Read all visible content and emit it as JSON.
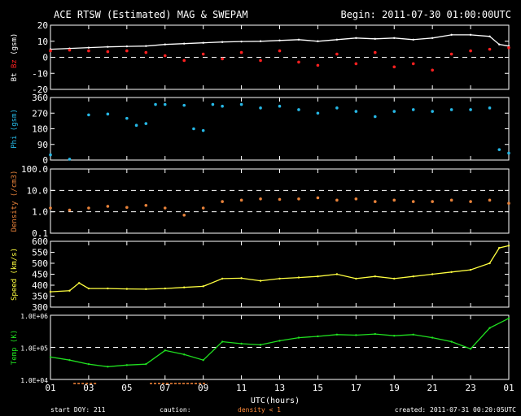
{
  "header": {
    "title": "ACE RTSW (Estimated) MAG & SWEPAM",
    "begin": "Begin: 2011-07-30 01:00:00UTC"
  },
  "footer": {
    "start_doy": "start DOY: 211",
    "caution": "caution:",
    "density_note": "density < 1",
    "created": "created: 2011-07-31 00:20:05UTC"
  },
  "chart_data": {
    "type": "line",
    "x_label": "UTC(hours)",
    "x_ticks": [
      "01",
      "03",
      "05",
      "07",
      "09",
      "11",
      "13",
      "15",
      "17",
      "19",
      "21",
      "23",
      "01"
    ],
    "x_range_hours": [
      0,
      24
    ],
    "colors": {
      "bt": "#ffffff",
      "bz": "#ff2020",
      "phi": "#26b8e6",
      "density": "#e8823a",
      "speed": "#ffff40",
      "temp": "#20e020",
      "axis": "#ffffff",
      "caution": "#ff8a3a"
    },
    "panels": [
      {
        "id": "mag",
        "ylabel_parts": [
          "Bt",
          " ",
          "Bz",
          " (gsm)"
        ],
        "ylabel_colors": [
          "#ffffff",
          "#ffffff",
          "#ff2020",
          "#ffffff"
        ],
        "ylim": [
          -20,
          20
        ],
        "yticks": [
          "20",
          "10",
          "0",
          "-10",
          "-20"
        ],
        "ytick_values": [
          20,
          10,
          0,
          -10,
          -20
        ],
        "dashed": [
          0
        ],
        "series": [
          {
            "name": "Bt",
            "color": "#ffffff",
            "style": "line",
            "values": [
              [
                0.0,
                5.0
              ],
              [
                1.0,
                5.5
              ],
              [
                2.0,
                6.0
              ],
              [
                3.0,
                6.5
              ],
              [
                4.0,
                6.8
              ],
              [
                5.0,
                7.0
              ],
              [
                6.0,
                8.0
              ],
              [
                7.0,
                8.5
              ],
              [
                8.0,
                9.0
              ],
              [
                9.0,
                9.5
              ],
              [
                10.0,
                9.8
              ],
              [
                11.0,
                10.0
              ],
              [
                12.0,
                10.5
              ],
              [
                13.0,
                11.0
              ],
              [
                14.0,
                10.0
              ],
              [
                15.0,
                11.0
              ],
              [
                16.0,
                12.0
              ],
              [
                17.0,
                11.5
              ],
              [
                18.0,
                12.0
              ],
              [
                19.0,
                11.0
              ],
              [
                20.0,
                12.0
              ],
              [
                21.0,
                14.0
              ],
              [
                22.0,
                14.0
              ],
              [
                23.0,
                13.0
              ],
              [
                23.5,
                8.0
              ],
              [
                24.0,
                7.0
              ]
            ]
          },
          {
            "name": "Bz",
            "color": "#ff2020",
            "style": "points",
            "values": [
              [
                0.0,
                4.0
              ],
              [
                1.0,
                4.5
              ],
              [
                2.0,
                4.0
              ],
              [
                3.0,
                3.5
              ],
              [
                4.0,
                4.0
              ],
              [
                5.0,
                3.0
              ],
              [
                6.0,
                1.0
              ],
              [
                7.0,
                -2.0
              ],
              [
                8.0,
                2.0
              ],
              [
                9.0,
                -1.0
              ],
              [
                10.0,
                3.0
              ],
              [
                11.0,
                -2.0
              ],
              [
                12.0,
                4.0
              ],
              [
                13.0,
                -3.0
              ],
              [
                14.0,
                -5.0
              ],
              [
                15.0,
                2.0
              ],
              [
                16.0,
                -4.0
              ],
              [
                17.0,
                3.0
              ],
              [
                18.0,
                -6.0
              ],
              [
                19.0,
                -4.0
              ],
              [
                20.0,
                -8.0
              ],
              [
                21.0,
                2.0
              ],
              [
                22.0,
                4.0
              ],
              [
                23.0,
                5.0
              ],
              [
                24.0,
                6.0
              ]
            ]
          }
        ]
      },
      {
        "id": "phi",
        "ylabel_parts": [
          "Phi (gsm)"
        ],
        "ylabel_colors": [
          "#26b8e6"
        ],
        "ylim": [
          0,
          360
        ],
        "yticks": [
          "360",
          "270",
          "180",
          "90",
          "0"
        ],
        "ytick_values": [
          360,
          270,
          180,
          90,
          0
        ],
        "dashed": [],
        "series": [
          {
            "name": "Phi",
            "color": "#26b8e6",
            "style": "points",
            "values": [
              [
                0.0,
                30.0
              ],
              [
                1.0,
                5.0
              ],
              [
                2.0,
                260.0
              ],
              [
                3.0,
                265.0
              ],
              [
                4.0,
                240.0
              ],
              [
                4.5,
                200.0
              ],
              [
                5.0,
                210.0
              ],
              [
                5.5,
                320.0
              ],
              [
                6.0,
                320.0
              ],
              [
                7.0,
                315.0
              ],
              [
                7.5,
                180.0
              ],
              [
                8.0,
                170.0
              ],
              [
                8.5,
                320.0
              ],
              [
                9.0,
                310.0
              ],
              [
                10.0,
                320.0
              ],
              [
                11.0,
                300.0
              ],
              [
                12.0,
                310.0
              ],
              [
                13.0,
                290.0
              ],
              [
                14.0,
                270.0
              ],
              [
                15.0,
                300.0
              ],
              [
                16.0,
                280.0
              ],
              [
                17.0,
                250.0
              ],
              [
                18.0,
                280.0
              ],
              [
                19.0,
                290.0
              ],
              [
                20.0,
                280.0
              ],
              [
                21.0,
                290.0
              ],
              [
                22.0,
                290.0
              ],
              [
                23.0,
                300.0
              ],
              [
                23.5,
                60.0
              ],
              [
                24.0,
                40.0
              ]
            ]
          }
        ]
      },
      {
        "id": "density",
        "ylabel_parts": [
          "Density (/cm3)"
        ],
        "ylabel_colors": [
          "#e8823a"
        ],
        "ylim": [
          0.1,
          100
        ],
        "log": true,
        "yticks": [
          "100.0",
          "10.0",
          "1.0",
          "0.1"
        ],
        "ytick_values": [
          100,
          10,
          1,
          0.1
        ],
        "dashed": [
          10,
          1
        ],
        "series": [
          {
            "name": "Density",
            "color": "#e8823a",
            "style": "points",
            "values": [
              [
                0.0,
                1.5
              ],
              [
                1.0,
                1.2
              ],
              [
                2.0,
                1.5
              ],
              [
                3.0,
                1.8
              ],
              [
                4.0,
                1.6
              ],
              [
                5.0,
                2.0
              ],
              [
                6.0,
                1.5
              ],
              [
                7.0,
                0.7
              ],
              [
                8.0,
                1.5
              ],
              [
                9.0,
                3.0
              ],
              [
                10.0,
                3.5
              ],
              [
                11.0,
                4.0
              ],
              [
                12.0,
                3.8
              ],
              [
                13.0,
                4.0
              ],
              [
                14.0,
                4.5
              ],
              [
                15.0,
                3.5
              ],
              [
                16.0,
                4.0
              ],
              [
                17.0,
                3.0
              ],
              [
                18.0,
                3.5
              ],
              [
                19.0,
                3.0
              ],
              [
                20.0,
                3.0
              ],
              [
                21.0,
                3.5
              ],
              [
                22.0,
                3.0
              ],
              [
                23.0,
                3.5
              ],
              [
                24.0,
                2.5
              ]
            ]
          }
        ]
      },
      {
        "id": "speed",
        "ylabel_parts": [
          "Speed (km/s)"
        ],
        "ylabel_colors": [
          "#ffff40"
        ],
        "ylim": [
          300,
          600
        ],
        "yticks": [
          "600",
          "550",
          "500",
          "450",
          "400",
          "350",
          "300"
        ],
        "ytick_values": [
          600,
          550,
          500,
          450,
          400,
          350,
          300
        ],
        "dashed": [],
        "series": [
          {
            "name": "Speed",
            "color": "#ffff40",
            "style": "line",
            "values": [
              [
                0.0,
                370.0
              ],
              [
                1.0,
                375.0
              ],
              [
                1.5,
                410.0
              ],
              [
                2.0,
                385.0
              ],
              [
                3.0,
                385.0
              ],
              [
                4.0,
                383.0
              ],
              [
                5.0,
                382.0
              ],
              [
                6.0,
                385.0
              ],
              [
                7.0,
                390.0
              ],
              [
                8.0,
                395.0
              ],
              [
                9.0,
                430.0
              ],
              [
                10.0,
                432.0
              ],
              [
                11.0,
                420.0
              ],
              [
                12.0,
                430.0
              ],
              [
                13.0,
                435.0
              ],
              [
                14.0,
                440.0
              ],
              [
                15.0,
                450.0
              ],
              [
                16.0,
                430.0
              ],
              [
                17.0,
                440.0
              ],
              [
                18.0,
                430.0
              ],
              [
                19.0,
                440.0
              ],
              [
                20.0,
                450.0
              ],
              [
                21.0,
                460.0
              ],
              [
                22.0,
                470.0
              ],
              [
                23.0,
                500.0
              ],
              [
                23.5,
                570.0
              ],
              [
                24.0,
                580.0
              ]
            ]
          }
        ]
      },
      {
        "id": "temp",
        "ylabel_parts": [
          "Temp (K)"
        ],
        "ylabel_colors": [
          "#20e020"
        ],
        "ylim": [
          10000,
          1000000
        ],
        "log": true,
        "yticks": [
          "1.0E+06",
          "1.0E+05",
          "1.0E+04"
        ],
        "ytick_values": [
          1000000,
          100000,
          10000
        ],
        "dashed": [
          100000
        ],
        "series": [
          {
            "name": "Temp",
            "color": "#20e020",
            "style": "line",
            "values": [
              [
                0.0,
                50000
              ],
              [
                1.0,
                40000
              ],
              [
                2.0,
                30000
              ],
              [
                3.0,
                25000
              ],
              [
                4.0,
                28000
              ],
              [
                5.0,
                30000
              ],
              [
                6.0,
                80000
              ],
              [
                7.0,
                60000
              ],
              [
                8.0,
                40000
              ],
              [
                9.0,
                150000
              ],
              [
                10.0,
                130000
              ],
              [
                11.0,
                120000
              ],
              [
                12.0,
                160000
              ],
              [
                13.0,
                200000
              ],
              [
                14.0,
                220000
              ],
              [
                15.0,
                250000
              ],
              [
                16.0,
                240000
              ],
              [
                17.0,
                260000
              ],
              [
                18.0,
                230000
              ],
              [
                19.0,
                250000
              ],
              [
                20.0,
                200000
              ],
              [
                21.0,
                150000
              ],
              [
                22.0,
                90000
              ],
              [
                23.0,
                400000
              ],
              [
                24.0,
                800000
              ]
            ]
          }
        ]
      }
    ]
  }
}
